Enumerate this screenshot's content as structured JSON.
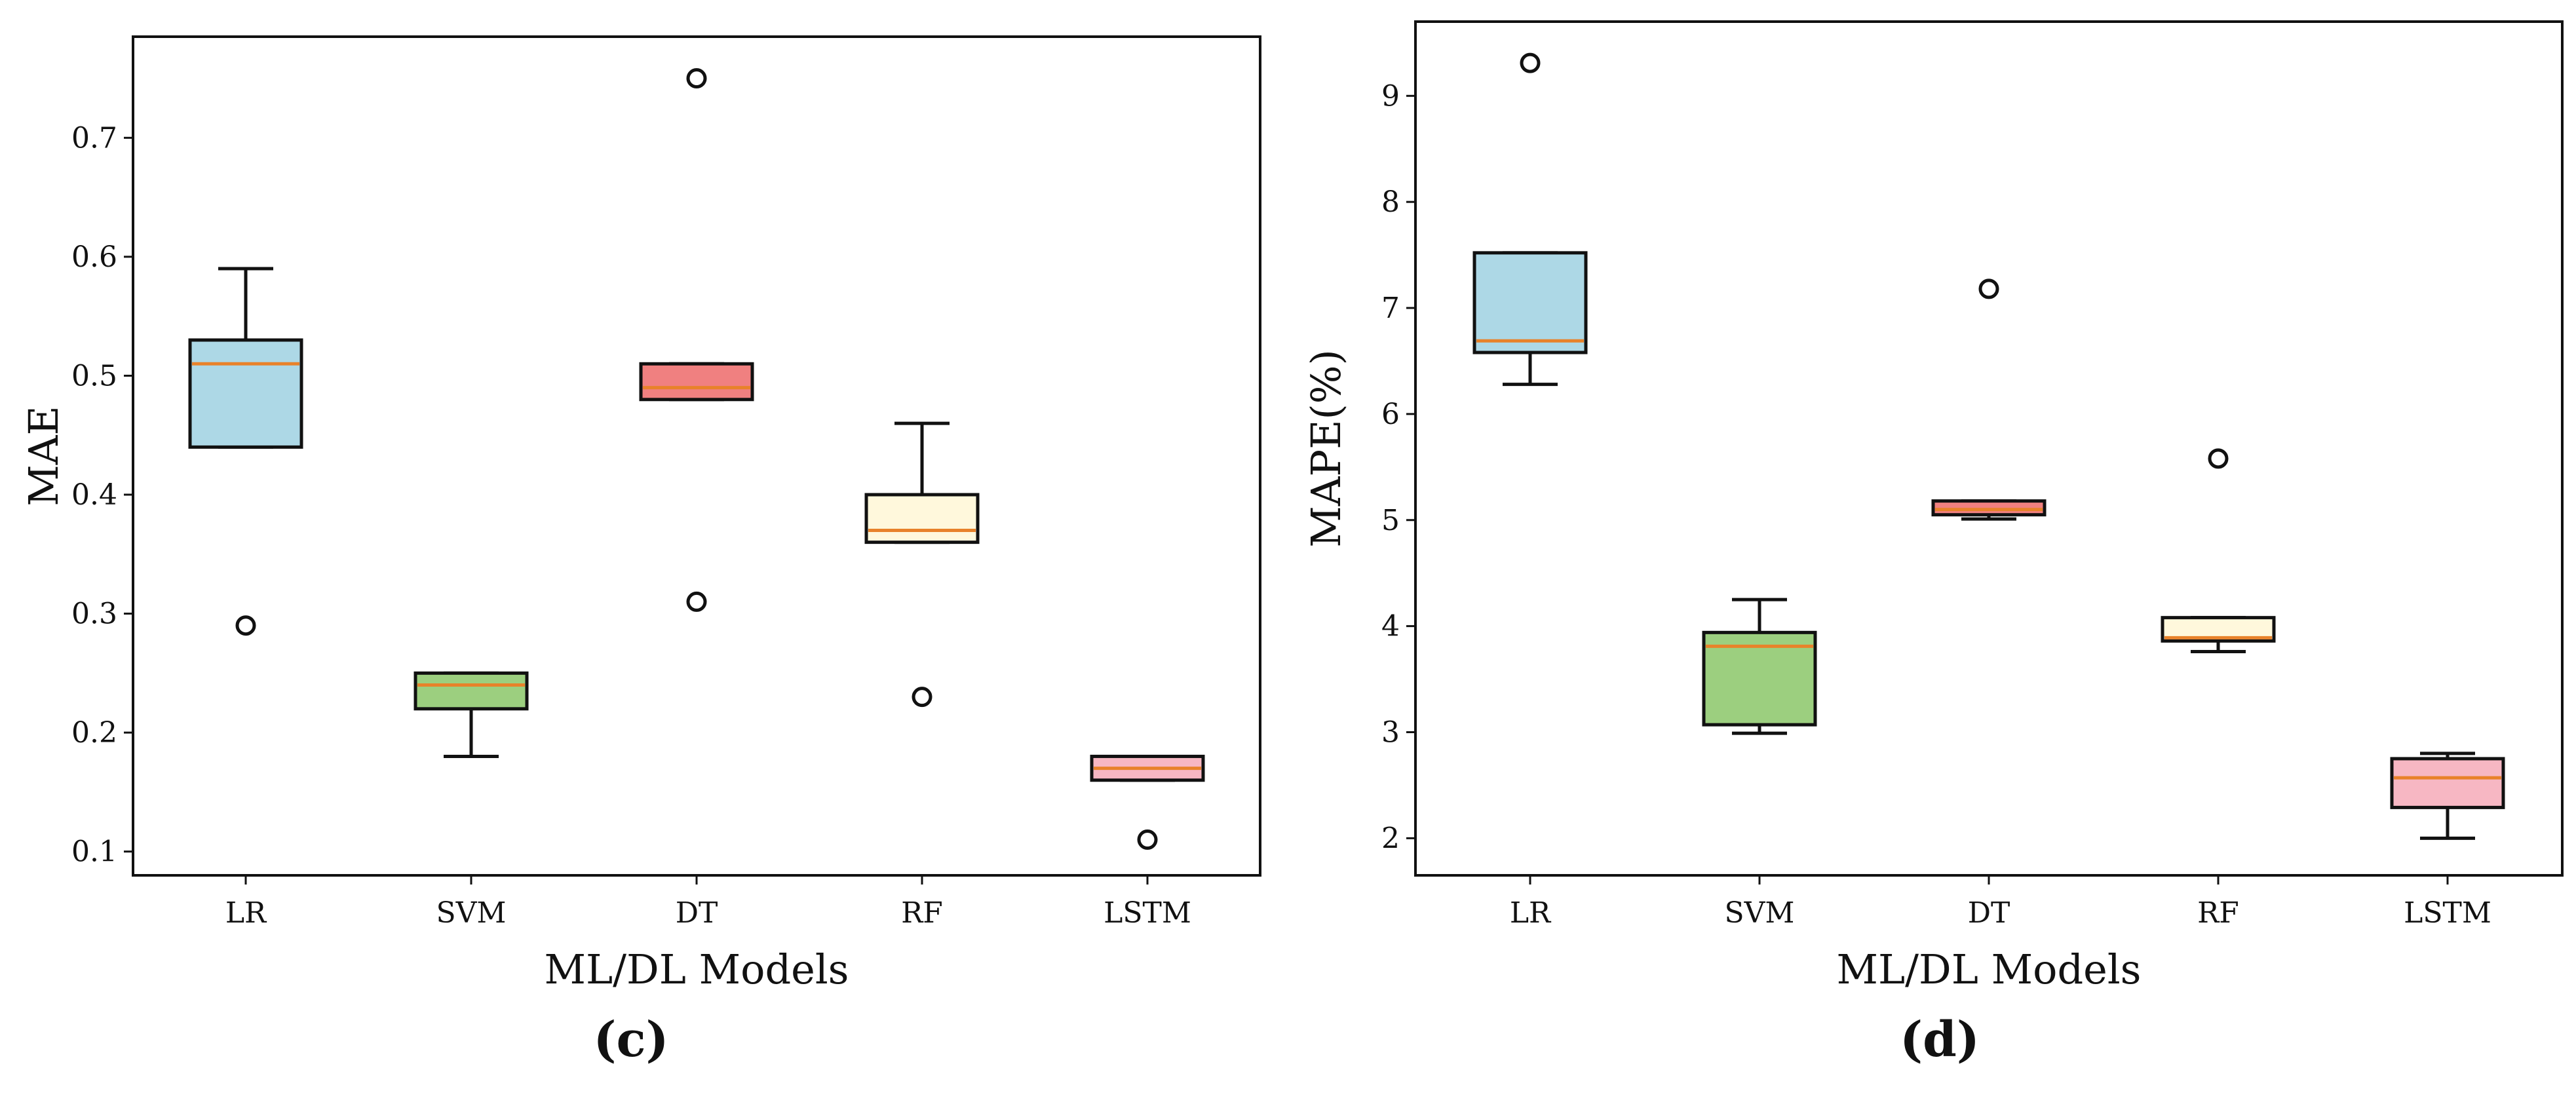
{
  "chart_data": [
    {
      "id": "c",
      "type": "box",
      "panel_label": "(c)",
      "xlabel": "ML/DL Models",
      "ylabel": "MAE",
      "ylim": [
        0.08,
        0.785
      ],
      "yticks": [
        0.1,
        0.2,
        0.3,
        0.4,
        0.5,
        0.6,
        0.7
      ],
      "ytick_labels": [
        "0.1",
        "0.2",
        "0.3",
        "0.4",
        "0.5",
        "0.6",
        "0.7"
      ],
      "categories": [
        "LR",
        "SVM",
        "DT",
        "RF",
        "LSTM"
      ],
      "boxes": [
        {
          "name": "LR",
          "whisker_low": 0.44,
          "q1": 0.44,
          "median": 0.51,
          "q3": 0.53,
          "whisker_high": 0.59,
          "outliers": [
            0.29
          ],
          "fill": "#add8e6"
        },
        {
          "name": "SVM",
          "whisker_low": 0.18,
          "q1": 0.22,
          "median": 0.24,
          "q3": 0.25,
          "whisker_high": 0.25,
          "outliers": [],
          "fill": "#9ccf7f"
        },
        {
          "name": "DT",
          "whisker_low": 0.48,
          "q1": 0.48,
          "median": 0.49,
          "q3": 0.51,
          "whisker_high": 0.51,
          "outliers": [
            0.75,
            0.31
          ],
          "fill": "#f08080"
        },
        {
          "name": "RF",
          "whisker_low": 0.36,
          "q1": 0.36,
          "median": 0.37,
          "q3": 0.4,
          "whisker_high": 0.46,
          "outliers": [
            0.23
          ],
          "fill": "#fff8dc"
        },
        {
          "name": "LSTM",
          "whisker_low": 0.16,
          "q1": 0.16,
          "median": 0.17,
          "q3": 0.18,
          "whisker_high": 0.18,
          "outliers": [
            0.11
          ],
          "fill": "#f7b7c3"
        }
      ]
    },
    {
      "id": "d",
      "type": "box",
      "panel_label": "(d)",
      "xlabel": "ML/DL Models",
      "ylabel": "MAPE(%)",
      "ylim": [
        1.65,
        9.7
      ],
      "yticks": [
        2,
        3,
        4,
        5,
        6,
        7,
        8,
        9
      ],
      "ytick_labels": [
        "2",
        "3",
        "4",
        "5",
        "6",
        "7",
        "8",
        "9"
      ],
      "categories": [
        "LR",
        "SVM",
        "DT",
        "RF",
        "LSTM"
      ],
      "boxes": [
        {
          "name": "LR",
          "whisker_low": 6.28,
          "q1": 6.58,
          "median": 6.69,
          "q3": 7.52,
          "whisker_high": 7.52,
          "outliers": [
            9.31
          ],
          "fill": "#add8e6"
        },
        {
          "name": "SVM",
          "whisker_low": 2.99,
          "q1": 3.07,
          "median": 3.81,
          "q3": 3.94,
          "whisker_high": 4.25,
          "outliers": [],
          "fill": "#9ccf7f"
        },
        {
          "name": "DT",
          "whisker_low": 5.01,
          "q1": 5.05,
          "median": 5.1,
          "q3": 5.18,
          "whisker_high": 5.18,
          "outliers": [
            7.18
          ],
          "fill": "#f08080"
        },
        {
          "name": "RF",
          "whisker_low": 3.76,
          "q1": 3.86,
          "median": 3.89,
          "q3": 4.08,
          "whisker_high": 4.08,
          "outliers": [
            5.58
          ],
          "fill": "#fff8dc"
        },
        {
          "name": "LSTM",
          "whisker_low": 2.0,
          "q1": 2.29,
          "median": 2.57,
          "q3": 2.75,
          "whisker_high": 2.8,
          "outliers": [],
          "fill": "#f7b7c3"
        }
      ]
    }
  ],
  "style": {
    "median_color": "#e8822a",
    "box_edge_color": "#111111"
  }
}
